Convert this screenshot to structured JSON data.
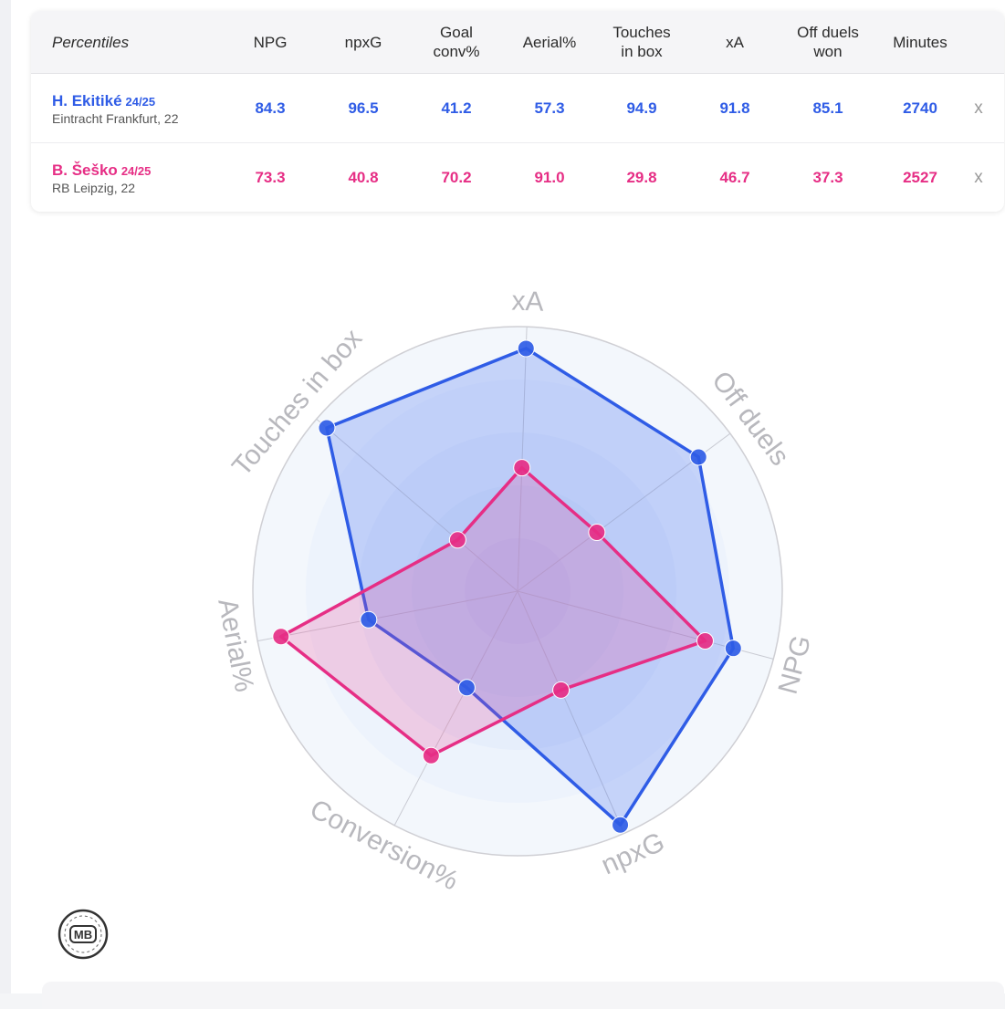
{
  "table": {
    "header_label": "Percentiles",
    "columns": [
      "NPG",
      "npxG",
      "Goal\nconv%",
      "Aerial%",
      "Touches\nin box",
      "xA",
      "Off duels\nwon",
      "Minutes"
    ],
    "remove_label": "x",
    "players": [
      {
        "name": "H. Ekitiké",
        "season": "24/25",
        "club_age": "Eintracht Frankfurt, 22",
        "color": "#2f5ce6",
        "values": [
          "84.3",
          "96.5",
          "41.2",
          "57.3",
          "94.9",
          "91.8",
          "85.1",
          "2740"
        ]
      },
      {
        "name": "B. Šeško",
        "season": "24/25",
        "club_age": "RB Leipzig, 22",
        "color": "#e62e85",
        "values": [
          "73.3",
          "40.8",
          "70.2",
          "91.0",
          "29.8",
          "46.7",
          "37.3",
          "2527"
        ]
      }
    ]
  },
  "chart_data": {
    "type": "radar",
    "axes": [
      "xA",
      "Off duels",
      "NPG",
      "npxG",
      "Conversion%",
      "Aerial%",
      "Touches in box"
    ],
    "range": [
      0,
      100
    ],
    "series": [
      {
        "name": "H. Ekitiké",
        "color": "#2f5ce6",
        "values": [
          91.8,
          85.1,
          84.3,
          96.5,
          41.2,
          57.3,
          94.9
        ]
      },
      {
        "name": "B. Šeško",
        "color": "#e62e85",
        "values": [
          46.7,
          37.3,
          73.3,
          40.8,
          70.2,
          91.0,
          29.8
        ]
      }
    ]
  },
  "logo": {
    "text": "MB"
  }
}
